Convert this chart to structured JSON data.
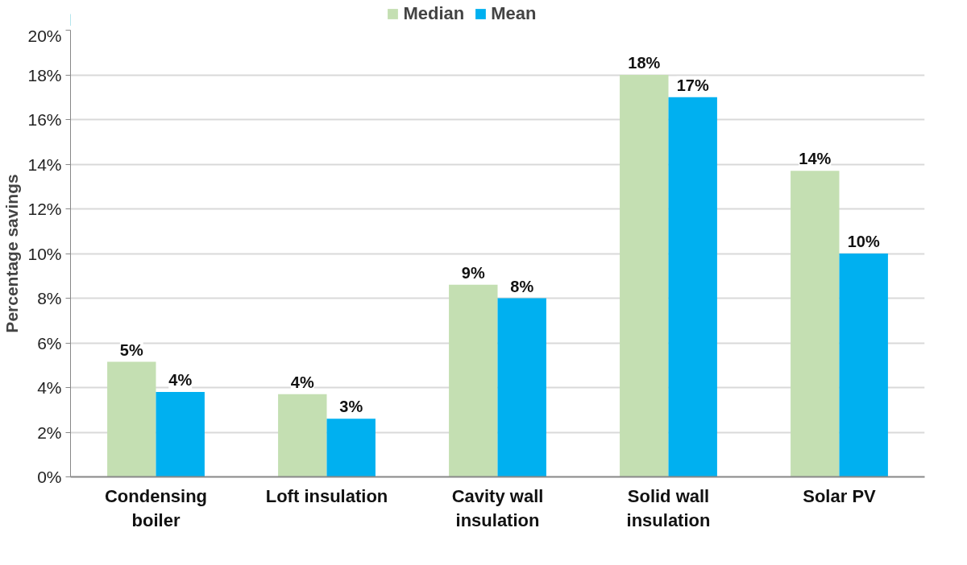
{
  "chart_data": {
    "type": "bar",
    "ylabel": "Percentage savings",
    "categories": [
      "Condensing boiler",
      "Loft insulation",
      "Cavity wall insulation",
      "Solid wall insulation",
      "Solar PV"
    ],
    "series": [
      {
        "name": "Median",
        "color": "#c4dfb2",
        "values": [
          5.15,
          3.7,
          8.6,
          18.0,
          13.7
        ],
        "value_labels": [
          "5%",
          "4%",
          "9%",
          "18%",
          "14%"
        ]
      },
      {
        "name": "Mean",
        "color": "#00b0f0",
        "values": [
          3.8,
          2.6,
          8.0,
          17.0,
          10.0
        ],
        "value_labels": [
          "4%",
          "3%",
          "8%",
          "17%",
          "10%"
        ]
      }
    ],
    "ylim": [
      0,
      20
    ],
    "yticks": [
      {
        "value": 0,
        "label": "0%"
      },
      {
        "value": 2,
        "label": "2%"
      },
      {
        "value": 4,
        "label": "4%"
      },
      {
        "value": 6,
        "label": "6%"
      },
      {
        "value": 8,
        "label": "8%"
      },
      {
        "value": 10,
        "label": "10%"
      },
      {
        "value": 12,
        "label": "12%"
      },
      {
        "value": 14,
        "label": "14%"
      },
      {
        "value": 16,
        "label": "16%"
      },
      {
        "value": 18,
        "label": "18%"
      },
      {
        "value": 20,
        "label": "20%"
      }
    ],
    "grid": "y",
    "legend": "top"
  }
}
